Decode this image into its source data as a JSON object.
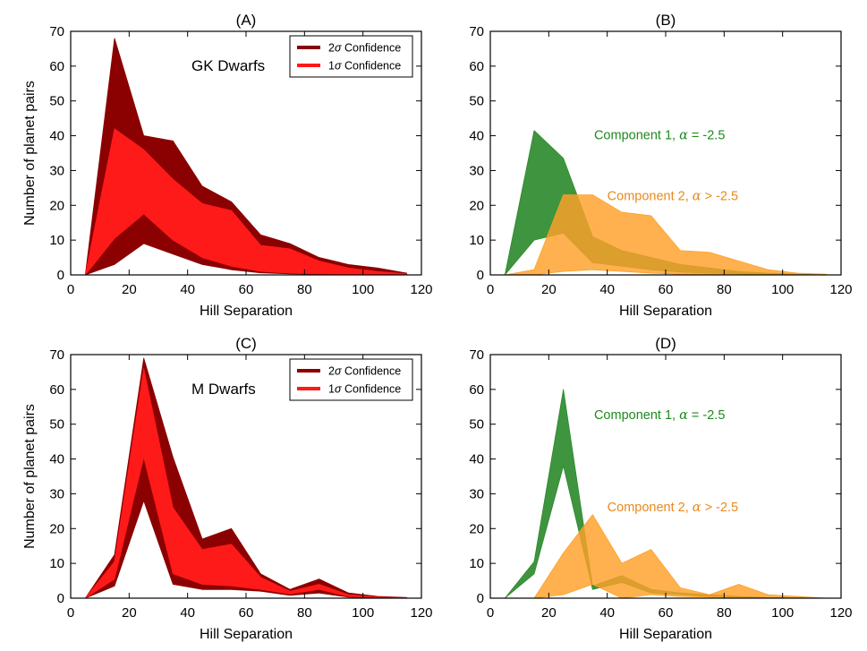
{
  "colors": {
    "ci2_dark_red": "#8b0000",
    "ci1_red": "#ff1a1a",
    "green": "#2a8a2a",
    "green_text": "#1e8a1e",
    "orange": "#ffa028",
    "orange_text": "#e8891e"
  },
  "chart_data": [
    {
      "id": "A",
      "type": "area",
      "title": "(A)",
      "xlabel": "Hill Separation",
      "ylabel": "Number of planet pairs",
      "xlim": [
        0,
        120
      ],
      "ylim": [
        0,
        70
      ],
      "xticks": [
        "0",
        "20",
        "40",
        "60",
        "80",
        "100",
        "120"
      ],
      "yticks": [
        "0",
        "10",
        "20",
        "30",
        "40",
        "50",
        "60",
        "70"
      ],
      "inset_label": "GK Dwarfs",
      "legend": {
        "position": "top-right",
        "entries": [
          {
            "label_pre": "2",
            "label_greek": "σ",
            "label_post": " Confidence",
            "color": "#8b0000"
          },
          {
            "label_pre": "1",
            "label_greek": "σ",
            "label_post": " Confidence",
            "color": "#ff1a1a"
          }
        ]
      },
      "annotations": [],
      "series": [
        {
          "name": "2σ Confidence",
          "color": "#8b0000",
          "x": [
            5,
            15,
            25,
            35,
            45,
            55,
            65,
            75,
            85,
            95,
            105,
            115
          ],
          "lower": [
            0,
            3,
            9,
            6,
            3,
            1.5,
            0.6,
            0.3,
            0.2,
            0.1,
            0,
            0
          ],
          "upper": [
            0,
            68,
            40,
            38.5,
            25.5,
            21,
            11.5,
            9,
            5,
            3,
            2,
            0.5
          ]
        },
        {
          "name": "1σ Confidence",
          "color": "#ff1a1a",
          "x": [
            5,
            15,
            25,
            35,
            45,
            55,
            65,
            75,
            85,
            95,
            105,
            115
          ],
          "lower": [
            0,
            10.5,
            17.5,
            10,
            5,
            2.5,
            1,
            0.5,
            0.3,
            0.2,
            0.1,
            0
          ],
          "upper": [
            0,
            42,
            36,
            27.5,
            20.5,
            18.5,
            8.5,
            7.5,
            4,
            2,
            1,
            0.3
          ]
        }
      ]
    },
    {
      "id": "B",
      "type": "area",
      "title": "(B)",
      "xlabel": "Hill Separation",
      "ylabel": "",
      "xlim": [
        0,
        120
      ],
      "ylim": [
        0,
        70
      ],
      "xticks": [
        "0",
        "20",
        "40",
        "60",
        "80",
        "100",
        "120"
      ],
      "yticks": [
        "0",
        "10",
        "20",
        "30",
        "40",
        "50",
        "60",
        "70"
      ],
      "inset_label": "",
      "legend": null,
      "annotations": [
        {
          "text_pre": "Component 1, ",
          "greek": "α",
          "text_post": " = -2.5",
          "color": "#1e8a1e",
          "x": 35.5,
          "y": 39
        },
        {
          "text_pre": "Component 2, ",
          "greek": "α",
          "text_post": " > -2.5",
          "color": "#e8891e",
          "x": 40,
          "y": 21.5
        }
      ],
      "series": [
        {
          "name": "Component 1",
          "color": "#2a8a2a",
          "opacity": 0.9,
          "x": [
            5,
            15,
            25,
            35,
            45,
            55,
            65,
            75,
            85,
            95,
            105,
            115
          ],
          "lower": [
            0,
            10,
            12,
            3.5,
            2.5,
            1.5,
            0.8,
            0.5,
            0.3,
            0.1,
            0,
            0
          ],
          "upper": [
            0,
            41.5,
            33.5,
            11,
            7,
            5,
            3,
            2,
            1,
            0.5,
            0.2,
            0
          ]
        },
        {
          "name": "Component 2",
          "color": "#ffa028",
          "opacity": 0.82,
          "x": [
            5,
            15,
            25,
            35,
            45,
            55,
            65,
            75,
            85,
            95,
            105,
            115
          ],
          "lower": [
            0,
            0,
            1,
            1.5,
            1,
            0.5,
            0.2,
            0.1,
            0,
            0,
            0,
            0
          ],
          "upper": [
            0,
            1.5,
            23,
            23,
            18,
            17,
            7,
            6.5,
            4,
            1.5,
            0.5,
            0.2
          ]
        }
      ]
    },
    {
      "id": "C",
      "type": "area",
      "title": "(C)",
      "xlabel": "Hill Separation",
      "ylabel": "Number of planet pairs",
      "xlim": [
        0,
        120
      ],
      "ylim": [
        0,
        70
      ],
      "xticks": [
        "0",
        "20",
        "40",
        "60",
        "80",
        "100",
        "120"
      ],
      "yticks": [
        "0",
        "10",
        "20",
        "30",
        "40",
        "50",
        "60",
        "70"
      ],
      "inset_label": "M Dwarfs",
      "legend": {
        "position": "top-right",
        "entries": [
          {
            "label_pre": "2",
            "label_greek": "σ",
            "label_post": " Confidence",
            "color": "#8b0000"
          },
          {
            "label_pre": "1",
            "label_greek": "σ",
            "label_post": " Confidence",
            "color": "#ff1a1a"
          }
        ]
      },
      "annotations": [],
      "series": [
        {
          "name": "2σ Confidence",
          "color": "#8b0000",
          "x": [
            5,
            15,
            25,
            35,
            45,
            55,
            65,
            75,
            85,
            95,
            105,
            115
          ],
          "lower": [
            0,
            3.5,
            28,
            4,
            2.5,
            2.5,
            2,
            0.8,
            1.5,
            0.3,
            0.1,
            0
          ],
          "upper": [
            0,
            12.5,
            69,
            40.5,
            17,
            20,
            7,
            2.5,
            5.5,
            1.5,
            0.5,
            0.2
          ]
        },
        {
          "name": "1σ Confidence",
          "color": "#ff1a1a",
          "x": [
            5,
            15,
            25,
            35,
            45,
            55,
            65,
            75,
            85,
            95,
            105,
            115
          ],
          "lower": [
            0,
            5.5,
            40.5,
            7,
            4,
            3.5,
            2.5,
            1.2,
            2.5,
            0.5,
            0.2,
            0
          ],
          "upper": [
            0,
            10.5,
            66,
            26,
            14,
            15.5,
            6,
            2,
            4,
            1,
            0.3,
            0.1
          ]
        }
      ]
    },
    {
      "id": "D",
      "type": "area",
      "title": "(D)",
      "xlabel": "Hill Separation",
      "ylabel": "",
      "xlim": [
        0,
        120
      ],
      "ylim": [
        0,
        70
      ],
      "xticks": [
        "0",
        "20",
        "40",
        "60",
        "80",
        "100",
        "120"
      ],
      "yticks": [
        "0",
        "10",
        "20",
        "30",
        "40",
        "50",
        "60",
        "70"
      ],
      "inset_label": "",
      "legend": null,
      "annotations": [
        {
          "text_pre": "Component 1, ",
          "greek": "α",
          "text_post": " = -2.5",
          "color": "#1e8a1e",
          "x": 35.5,
          "y": 51.5
        },
        {
          "text_pre": "Component 2, ",
          "greek": "α",
          "text_post": " > -2.5",
          "color": "#e8891e",
          "x": 40,
          "y": 25
        }
      ],
      "series": [
        {
          "name": "Component 1",
          "color": "#2a8a2a",
          "opacity": 0.9,
          "x": [
            5,
            15,
            25,
            35,
            45,
            55,
            65,
            75,
            85,
            95,
            105,
            115
          ],
          "lower": [
            0,
            7,
            38,
            2.5,
            4.5,
            1.5,
            1,
            0.5,
            0.3,
            0.1,
            0,
            0
          ],
          "upper": [
            0,
            10.5,
            60,
            3.5,
            6.5,
            2.5,
            1.5,
            1,
            0.5,
            0.2,
            0.1,
            0
          ]
        },
        {
          "name": "Component 2",
          "color": "#ffa028",
          "opacity": 0.82,
          "x": [
            15,
            25,
            35,
            45,
            55,
            65,
            75,
            85,
            95,
            105,
            115
          ],
          "lower": [
            0,
            1,
            4,
            0,
            1,
            0.5,
            0.3,
            0.2,
            0.1,
            0,
            0
          ],
          "upper": [
            0,
            13,
            24,
            10,
            14,
            3,
            1,
            4,
            1,
            0.5,
            0
          ]
        }
      ]
    }
  ]
}
